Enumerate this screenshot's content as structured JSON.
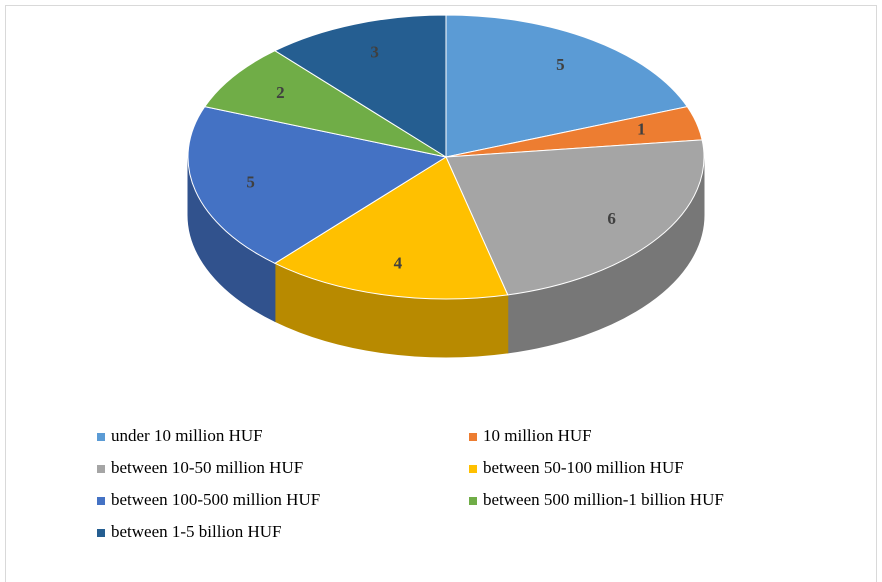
{
  "chart_data": {
    "type": "pie3d",
    "categories": [
      "under 10 million HUF",
      "10 million HUF",
      "between 10-50 million HUF",
      "between 50-100 million HUF",
      "between 100-500 million HUF",
      "between 500 million-1 billion HUF",
      "between 1-5 billion HUF"
    ],
    "values": [
      5,
      1,
      6,
      4,
      5,
      2,
      3
    ],
    "colors": [
      "#5b9bd5",
      "#ed7d31",
      "#a5a5a5",
      "#ffc000",
      "#4472c4",
      "#70ad47",
      "#255e91"
    ],
    "legend": "bottom"
  }
}
